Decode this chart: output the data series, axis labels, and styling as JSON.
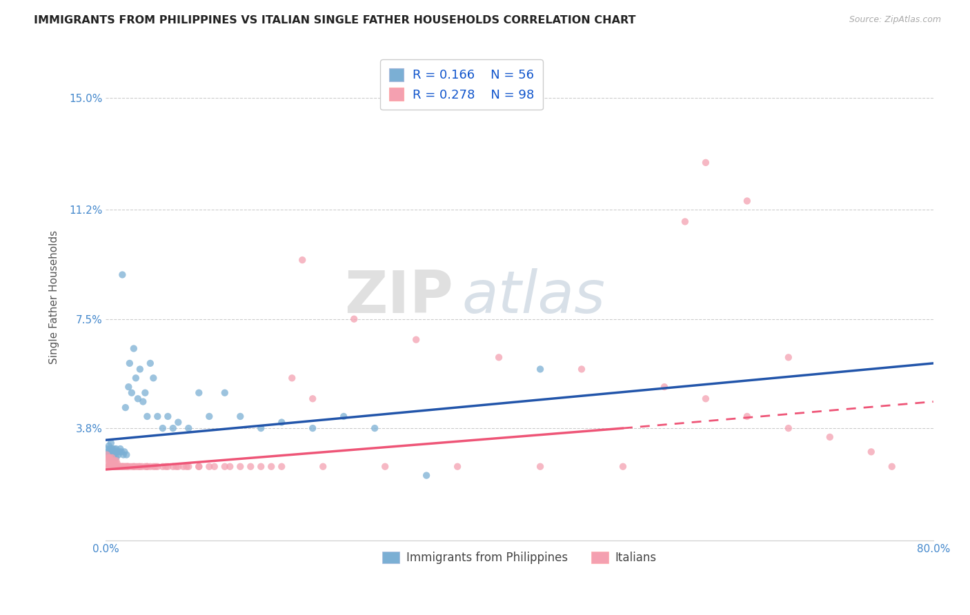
{
  "title": "IMMIGRANTS FROM PHILIPPINES VS ITALIAN SINGLE FATHER HOUSEHOLDS CORRELATION CHART",
  "source": "Source: ZipAtlas.com",
  "ylabel": "Single Father Households",
  "xlim": [
    0.0,
    0.8
  ],
  "ylim": [
    0.0,
    0.165
  ],
  "yticks": [
    0.038,
    0.075,
    0.112,
    0.15
  ],
  "ytick_labels": [
    "3.8%",
    "7.5%",
    "11.2%",
    "15.0%"
  ],
  "xticks": [
    0.0,
    0.2,
    0.4,
    0.6,
    0.8
  ],
  "xtick_labels": [
    "0.0%",
    "",
    "",
    "",
    "80.0%"
  ],
  "legend_r1": "R = 0.166",
  "legend_n1": "N = 56",
  "legend_r2": "R = 0.278",
  "legend_n2": "N = 98",
  "color_philippines": "#7BAFD4",
  "color_italians": "#F4A0B0",
  "color_trendline_philippines": "#2255AA",
  "color_trendline_italians": "#EE5577",
  "color_title": "#222222",
  "color_ytick": "#4488CC",
  "color_source": "#AAAAAA",
  "watermark_zip": "ZIP",
  "watermark_atlas": "atlas",
  "trendline_phil_x0": 0.0,
  "trendline_phil_y0": 0.034,
  "trendline_phil_x1": 0.8,
  "trendline_phil_y1": 0.06,
  "trendline_ital_solid_x0": 0.0,
  "trendline_ital_solid_y0": 0.024,
  "trendline_ital_solid_x1": 0.5,
  "trendline_ital_solid_y1": 0.038,
  "trendline_ital_dash_x0": 0.5,
  "trendline_ital_dash_y0": 0.038,
  "trendline_ital_dash_x1": 0.8,
  "trendline_ital_dash_y1": 0.047,
  "philippines_x": [
    0.001,
    0.002,
    0.003,
    0.003,
    0.004,
    0.004,
    0.005,
    0.005,
    0.006,
    0.006,
    0.007,
    0.007,
    0.008,
    0.008,
    0.009,
    0.01,
    0.01,
    0.011,
    0.012,
    0.013,
    0.014,
    0.015,
    0.016,
    0.017,
    0.018,
    0.019,
    0.02,
    0.022,
    0.023,
    0.025,
    0.027,
    0.029,
    0.031,
    0.033,
    0.036,
    0.038,
    0.04,
    0.043,
    0.046,
    0.05,
    0.055,
    0.06,
    0.065,
    0.07,
    0.08,
    0.09,
    0.1,
    0.115,
    0.13,
    0.15,
    0.17,
    0.2,
    0.23,
    0.26,
    0.31,
    0.42
  ],
  "philippines_y": [
    0.031,
    0.03,
    0.032,
    0.029,
    0.028,
    0.031,
    0.03,
    0.033,
    0.031,
    0.029,
    0.03,
    0.03,
    0.029,
    0.031,
    0.03,
    0.031,
    0.028,
    0.03,
    0.029,
    0.03,
    0.031,
    0.03,
    0.09,
    0.029,
    0.03,
    0.045,
    0.029,
    0.052,
    0.06,
    0.05,
    0.065,
    0.055,
    0.048,
    0.058,
    0.047,
    0.05,
    0.042,
    0.06,
    0.055,
    0.042,
    0.038,
    0.042,
    0.038,
    0.04,
    0.038,
    0.05,
    0.042,
    0.05,
    0.042,
    0.038,
    0.04,
    0.038,
    0.042,
    0.038,
    0.022,
    0.058
  ],
  "italians_x": [
    0.001,
    0.001,
    0.002,
    0.002,
    0.003,
    0.003,
    0.003,
    0.004,
    0.004,
    0.004,
    0.005,
    0.005,
    0.005,
    0.006,
    0.006,
    0.007,
    0.007,
    0.008,
    0.008,
    0.009,
    0.009,
    0.01,
    0.01,
    0.011,
    0.011,
    0.012,
    0.013,
    0.014,
    0.015,
    0.016,
    0.017,
    0.018,
    0.019,
    0.02,
    0.021,
    0.022,
    0.024,
    0.026,
    0.028,
    0.03,
    0.032,
    0.035,
    0.038,
    0.04,
    0.043,
    0.046,
    0.05,
    0.055,
    0.06,
    0.065,
    0.07,
    0.075,
    0.08,
    0.09,
    0.1,
    0.115,
    0.13,
    0.15,
    0.17,
    0.19,
    0.21,
    0.24,
    0.27,
    0.3,
    0.34,
    0.38,
    0.42,
    0.46,
    0.5,
    0.54,
    0.58,
    0.62,
    0.66,
    0.7,
    0.74,
    0.76,
    0.66,
    0.62,
    0.58,
    0.56,
    0.2,
    0.18,
    0.16,
    0.14,
    0.12,
    0.105,
    0.09,
    0.078,
    0.068,
    0.058,
    0.048,
    0.04,
    0.033,
    0.027,
    0.021,
    0.016,
    0.012,
    0.009
  ],
  "italians_y": [
    0.029,
    0.026,
    0.028,
    0.025,
    0.027,
    0.025,
    0.028,
    0.026,
    0.025,
    0.028,
    0.026,
    0.025,
    0.027,
    0.025,
    0.028,
    0.026,
    0.025,
    0.027,
    0.025,
    0.026,
    0.025,
    0.027,
    0.025,
    0.026,
    0.025,
    0.025,
    0.025,
    0.025,
    0.025,
    0.025,
    0.025,
    0.025,
    0.025,
    0.025,
    0.025,
    0.025,
    0.025,
    0.025,
    0.025,
    0.025,
    0.025,
    0.025,
    0.025,
    0.025,
    0.025,
    0.025,
    0.025,
    0.025,
    0.025,
    0.025,
    0.025,
    0.025,
    0.025,
    0.025,
    0.025,
    0.025,
    0.025,
    0.025,
    0.025,
    0.095,
    0.025,
    0.075,
    0.025,
    0.068,
    0.025,
    0.062,
    0.025,
    0.058,
    0.025,
    0.052,
    0.048,
    0.042,
    0.038,
    0.035,
    0.03,
    0.025,
    0.062,
    0.115,
    0.128,
    0.108,
    0.048,
    0.055,
    0.025,
    0.025,
    0.025,
    0.025,
    0.025,
    0.025,
    0.025,
    0.025,
    0.025,
    0.025,
    0.025,
    0.025,
    0.025,
    0.025,
    0.025,
    0.025
  ]
}
